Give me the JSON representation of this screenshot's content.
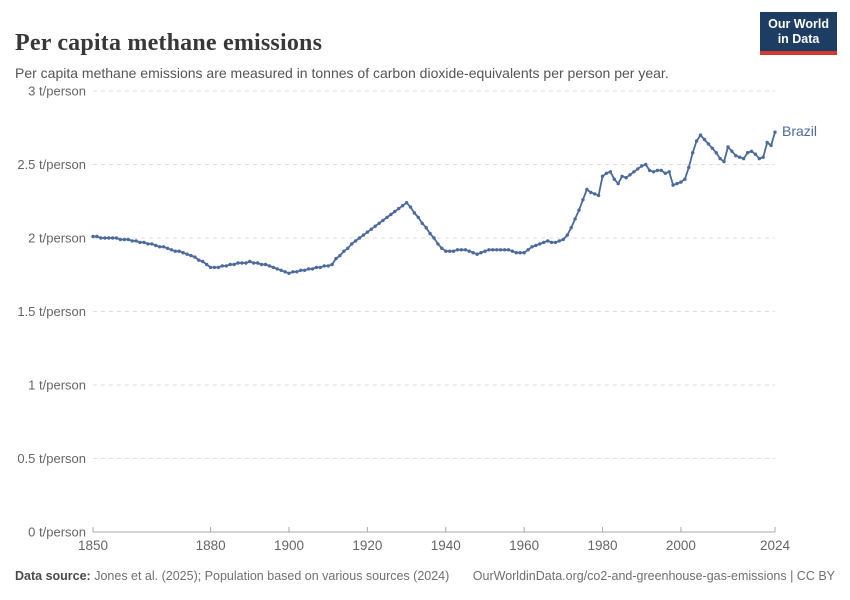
{
  "header": {
    "title": "Per capita methane emissions",
    "subtitle": "Per capita methane emissions are measured in tonnes of carbon dioxide-equivalents per person per year.",
    "logo": {
      "line1": "Our World",
      "line2": "in Data"
    }
  },
  "footer": {
    "datasource_label": "Data source:",
    "datasource_text": " Jones et al. (2025); Population based on various sources (2024)",
    "attribution": "OurWorldinData.org/co2-and-greenhouse-gas-emissions | CC BY"
  },
  "colors": {
    "line": "#4C6A9C",
    "series_label": "#4C6A9C",
    "grid": "#dddddd",
    "axis": "#a8a8a8",
    "tick_label": "#666666",
    "logo_bg": "#1d3d63",
    "logo_red": "#d13b2e"
  },
  "chart_data": {
    "type": "line",
    "title": "Per capita methane emissions",
    "unit": "t/person",
    "legend_position": "end-of-line-label",
    "grid": "dashed-horizontal",
    "x_ticks": [
      1850,
      1880,
      1900,
      1920,
      1940,
      1960,
      1980,
      2000,
      2024
    ],
    "y_ticks": [
      {
        "v": 0,
        "label": "0 t/person"
      },
      {
        "v": 0.5,
        "label": "0.5 t/person"
      },
      {
        "v": 1,
        "label": "1 t/person"
      },
      {
        "v": 1.5,
        "label": "1.5 t/person"
      },
      {
        "v": 2,
        "label": "2 t/person"
      },
      {
        "v": 2.5,
        "label": "2.5 t/person"
      },
      {
        "v": 3,
        "label": "3 t/person"
      }
    ],
    "xlim": [
      1850,
      2024
    ],
    "ylim": [
      0,
      3
    ],
    "series": [
      {
        "name": "Brazil",
        "start_year": 1850,
        "end_year": 2024,
        "values": [
          2.01,
          2.01,
          2.0,
          2.0,
          2.0,
          2.0,
          2.0,
          1.99,
          1.99,
          1.99,
          1.98,
          1.98,
          1.97,
          1.97,
          1.96,
          1.96,
          1.95,
          1.94,
          1.94,
          1.93,
          1.92,
          1.91,
          1.91,
          1.9,
          1.89,
          1.88,
          1.87,
          1.85,
          1.84,
          1.82,
          1.8,
          1.8,
          1.8,
          1.81,
          1.81,
          1.82,
          1.82,
          1.83,
          1.83,
          1.83,
          1.84,
          1.83,
          1.83,
          1.82,
          1.82,
          1.81,
          1.8,
          1.79,
          1.78,
          1.77,
          1.76,
          1.77,
          1.77,
          1.78,
          1.78,
          1.79,
          1.79,
          1.8,
          1.8,
          1.81,
          1.81,
          1.82,
          1.86,
          1.88,
          1.91,
          1.93,
          1.96,
          1.98,
          2.0,
          2.02,
          2.04,
          2.06,
          2.08,
          2.1,
          2.12,
          2.14,
          2.16,
          2.18,
          2.2,
          2.22,
          2.24,
          2.21,
          2.17,
          2.14,
          2.1,
          2.07,
          2.03,
          2.0,
          1.96,
          1.93,
          1.91,
          1.91,
          1.91,
          1.92,
          1.92,
          1.92,
          1.91,
          1.9,
          1.89,
          1.9,
          1.91,
          1.92,
          1.92,
          1.92,
          1.92,
          1.92,
          1.92,
          1.91,
          1.9,
          1.9,
          1.9,
          1.92,
          1.94,
          1.95,
          1.96,
          1.97,
          1.98,
          1.97,
          1.97,
          1.98,
          1.99,
          2.02,
          2.07,
          2.13,
          2.19,
          2.26,
          2.33,
          2.31,
          2.3,
          2.29,
          2.42,
          2.44,
          2.45,
          2.4,
          2.37,
          2.42,
          2.41,
          2.43,
          2.45,
          2.47,
          2.49,
          2.5,
          2.46,
          2.45,
          2.46,
          2.46,
          2.44,
          2.45,
          2.36,
          2.37,
          2.38,
          2.4,
          2.48,
          2.58,
          2.66,
          2.7,
          2.67,
          2.64,
          2.61,
          2.58,
          2.54,
          2.52,
          2.62,
          2.59,
          2.56,
          2.55,
          2.54,
          2.58,
          2.59,
          2.57,
          2.54,
          2.55,
          2.65,
          2.63,
          2.72
        ]
      }
    ]
  }
}
